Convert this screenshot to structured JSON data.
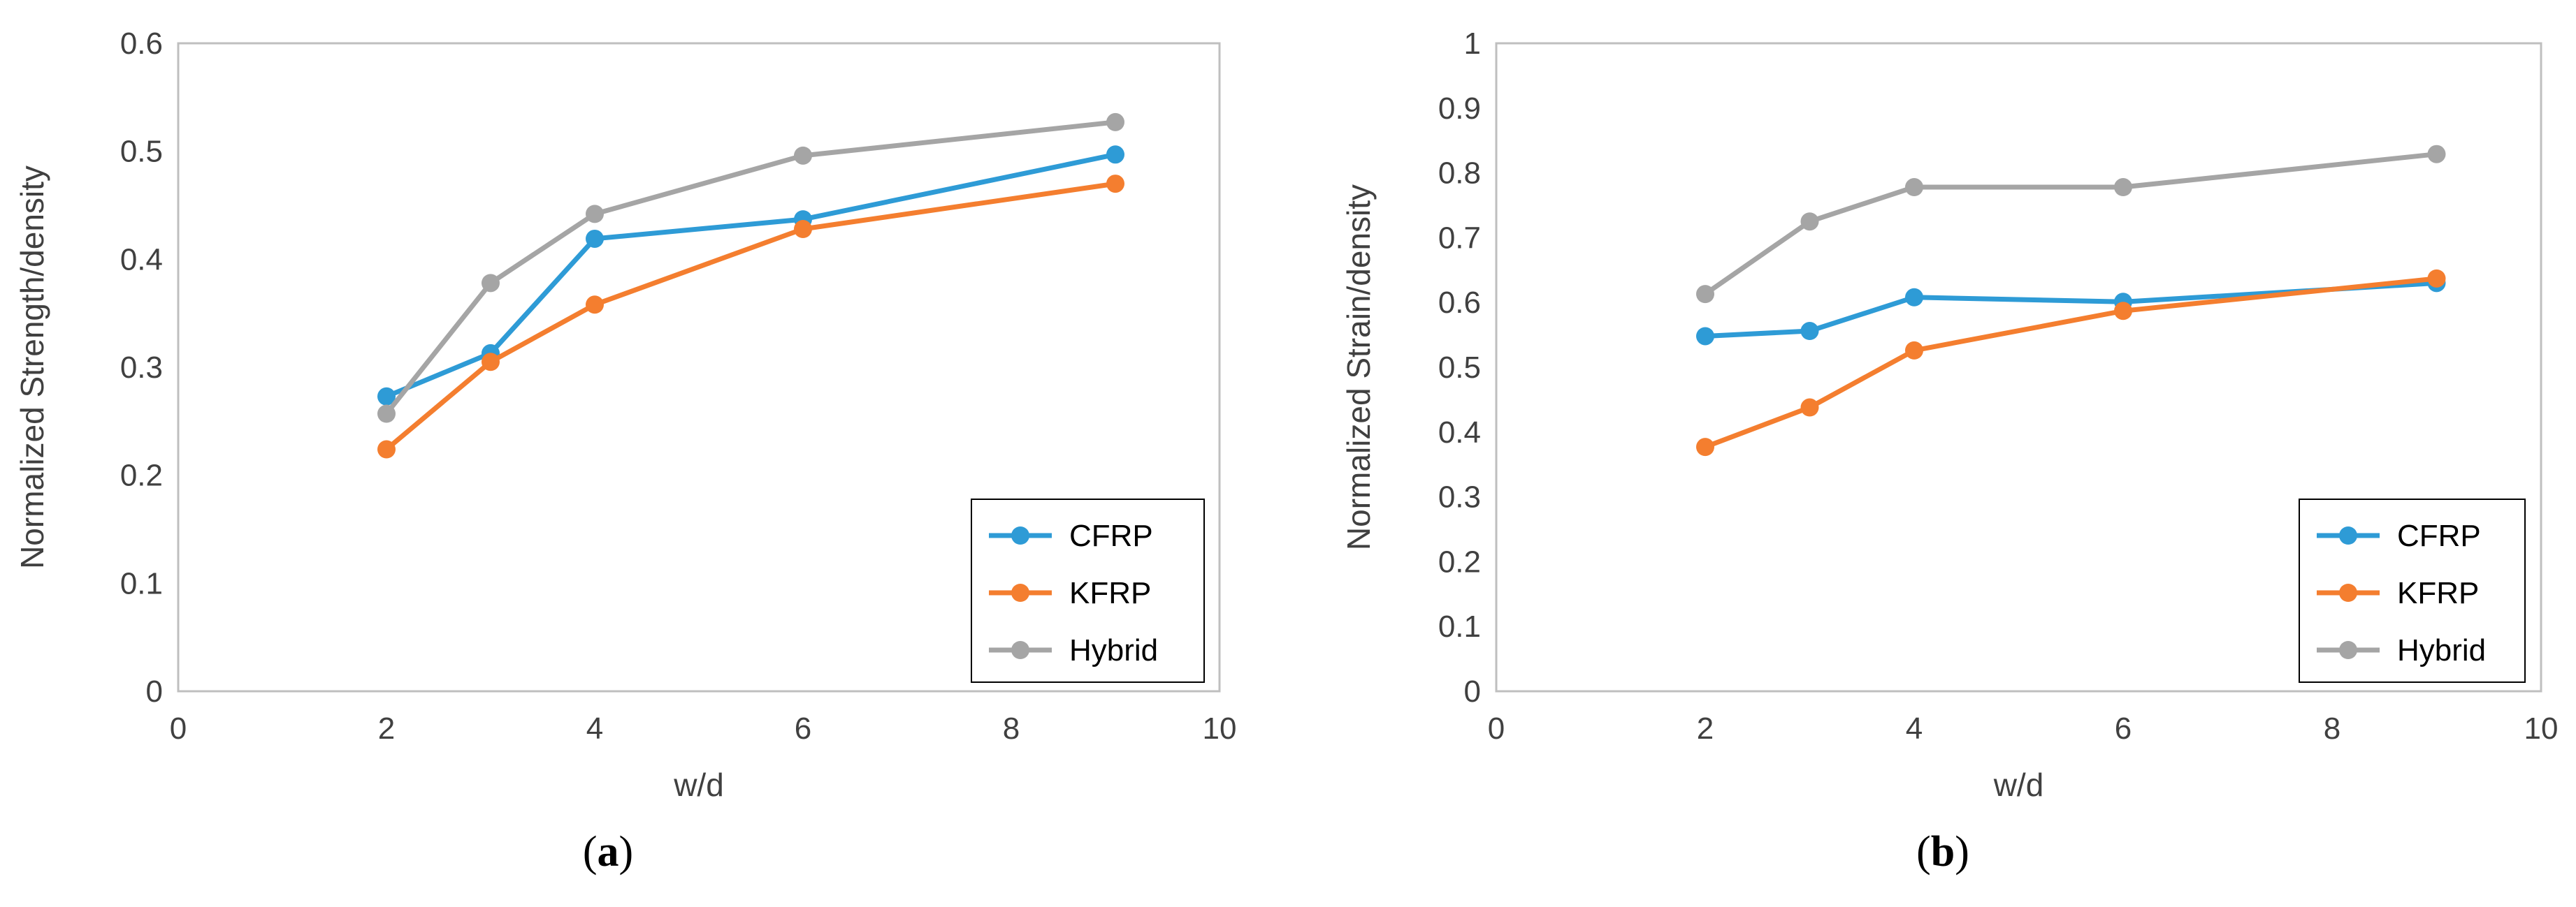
{
  "chart_data": [
    {
      "type": "line",
      "panel_label": "a",
      "title": "",
      "xlabel": "w/d",
      "ylabel": "Normalized Strength/density",
      "xlim": [
        0,
        10
      ],
      "ylim": [
        0,
        0.6
      ],
      "xticks": [
        "0",
        "2",
        "4",
        "6",
        "8",
        "10"
      ],
      "yticks": [
        "0",
        "0.1",
        "0.2",
        "0.3",
        "0.4",
        "0.5",
        "0.6"
      ],
      "legend_position": "bottom-right",
      "series": [
        {
          "name": "CFRP",
          "color": "#2E9BD6",
          "x": [
            2,
            3,
            4,
            6,
            9
          ],
          "y": [
            0.273,
            0.313,
            0.419,
            0.437,
            0.497
          ]
        },
        {
          "name": "KFRP",
          "color": "#F47E2F",
          "x": [
            2,
            3,
            4,
            6,
            9
          ],
          "y": [
            0.224,
            0.305,
            0.358,
            0.428,
            0.47
          ]
        },
        {
          "name": "Hybrid",
          "color": "#A5A5A5",
          "x": [
            2,
            3,
            4,
            6,
            9
          ],
          "y": [
            0.257,
            0.378,
            0.442,
            0.496,
            0.527
          ]
        }
      ]
    },
    {
      "type": "line",
      "panel_label": "b",
      "title": "",
      "xlabel": "w/d",
      "ylabel": "Normalized Strain/density",
      "xlim": [
        0,
        10
      ],
      "ylim": [
        0,
        1
      ],
      "xticks": [
        "0",
        "2",
        "4",
        "6",
        "8",
        "10"
      ],
      "yticks": [
        "0",
        "0.1",
        "0.2",
        "0.3",
        "0.4",
        "0.5",
        "0.6",
        "0.7",
        "0.8",
        "0.9",
        "1"
      ],
      "legend_position": "bottom-right",
      "series": [
        {
          "name": "CFRP",
          "color": "#2E9BD6",
          "x": [
            2,
            3,
            4,
            6,
            9
          ],
          "y": [
            0.548,
            0.556,
            0.608,
            0.601,
            0.63
          ]
        },
        {
          "name": "KFRP",
          "color": "#F47E2F",
          "x": [
            2,
            3,
            4,
            6,
            9
          ],
          "y": [
            0.377,
            0.438,
            0.526,
            0.587,
            0.637
          ]
        },
        {
          "name": "Hybrid",
          "color": "#A5A5A5",
          "x": [
            2,
            3,
            4,
            6,
            9
          ],
          "y": [
            0.613,
            0.725,
            0.778,
            0.778,
            0.829
          ]
        }
      ]
    }
  ]
}
